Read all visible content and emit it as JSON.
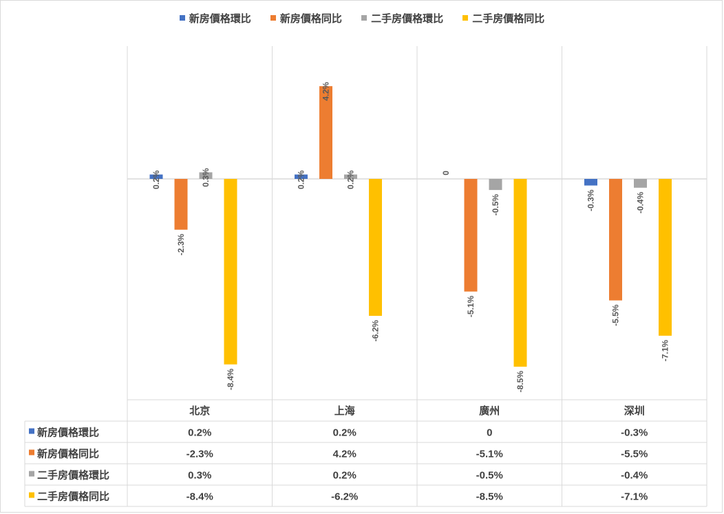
{
  "chart_data": {
    "type": "bar",
    "categories": [
      "北京",
      "上海",
      "廣州",
      "深圳"
    ],
    "series": [
      {
        "name": "新房價格環比",
        "color": "#4472c4",
        "values": [
          0.2,
          0.2,
          0,
          -0.3
        ],
        "labels": [
          "0.2%",
          "0.2%",
          "0",
          "-0.3%"
        ]
      },
      {
        "name": "新房價格同比",
        "color": "#ed7d31",
        "values": [
          -2.3,
          4.2,
          -5.1,
          -5.5
        ],
        "labels": [
          "-2.3%",
          "4.2%",
          "-5.1%",
          "-5.5%"
        ]
      },
      {
        "name": "二手房價格環比",
        "color": "#a5a5a5",
        "values": [
          0.3,
          0.2,
          -0.5,
          -0.4
        ],
        "labels": [
          "0.3%",
          "0.2%",
          "-0.5%",
          "-0.4%"
        ]
      },
      {
        "name": "二手房價格同比",
        "color": "#ffc000",
        "values": [
          -8.4,
          -6.2,
          -8.5,
          -7.1
        ],
        "labels": [
          "-8.4%",
          "-6.2%",
          "-8.5%",
          "-7.1%"
        ]
      }
    ],
    "legend": "top",
    "data_table": true,
    "title": "",
    "xlabel": "",
    "ylabel": ""
  }
}
